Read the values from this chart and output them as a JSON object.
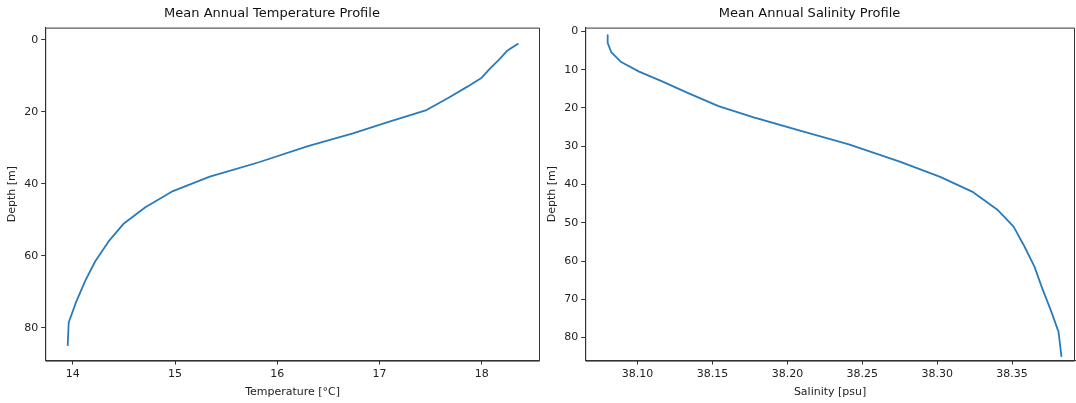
{
  "chart_data": [
    {
      "type": "line",
      "title": "Mean Annual Temperature Profile",
      "xlabel": "Temperature [°C]",
      "ylabel": "Depth [m]",
      "xlim": [
        13.73,
        18.57
      ],
      "ylim": [
        89.1,
        -3.4
      ],
      "xticks": [
        14,
        15,
        16,
        17,
        18
      ],
      "yticks": [
        0,
        20,
        40,
        60,
        80
      ],
      "grid": false,
      "series": [
        {
          "color": "#2b7bba",
          "x": [
            18.36,
            18.25,
            18.17,
            18.08,
            18.0,
            17.86,
            17.68,
            17.46,
            17.12,
            16.74,
            16.3,
            15.82,
            15.34,
            14.98,
            14.71,
            14.5,
            14.35,
            14.22,
            14.12,
            14.03,
            13.96,
            13.95
          ],
          "values": [
            1,
            3,
            5.5,
            8,
            10.5,
            13,
            16,
            19.5,
            22.5,
            26,
            29.5,
            34,
            38,
            42,
            46.5,
            51,
            56,
            61.5,
            67,
            73,
            78.5,
            85
          ]
        }
      ]
    },
    {
      "type": "line",
      "title": "Mean Annual Salinity Profile",
      "xlabel": "Salinity [psu]",
      "ylabel": "Depth [m]",
      "xlim": [
        38.065,
        38.392
      ],
      "ylim": [
        86,
        -1
      ],
      "xticks": [
        {
          "value": 38.1,
          "label": "38.10"
        },
        {
          "value": 38.15,
          "label": "38.15"
        },
        {
          "value": 38.2,
          "label": "38.20"
        },
        {
          "value": 38.25,
          "label": "38.25"
        },
        {
          "value": 38.3,
          "label": "38.30"
        },
        {
          "value": 38.35,
          "label": "38.35"
        }
      ],
      "yticks": [
        0,
        10,
        20,
        30,
        40,
        50,
        60,
        70,
        80
      ],
      "grid": false,
      "series": [
        {
          "color": "#2b7bba",
          "x": [
            38.08,
            38.08,
            38.0825,
            38.089,
            38.101,
            38.116,
            38.133,
            38.154,
            38.178,
            38.209,
            38.241,
            38.275,
            38.302,
            38.324,
            38.34,
            38.351,
            38.358,
            38.365,
            38.37,
            38.376,
            38.381,
            38.383
          ],
          "values": [
            1,
            3,
            5.5,
            8,
            10.5,
            13,
            16,
            19.5,
            22.5,
            26,
            29.5,
            34,
            38,
            42,
            46.5,
            51,
            56,
            61.5,
            67,
            73,
            78.5,
            85
          ]
        }
      ]
    }
  ]
}
